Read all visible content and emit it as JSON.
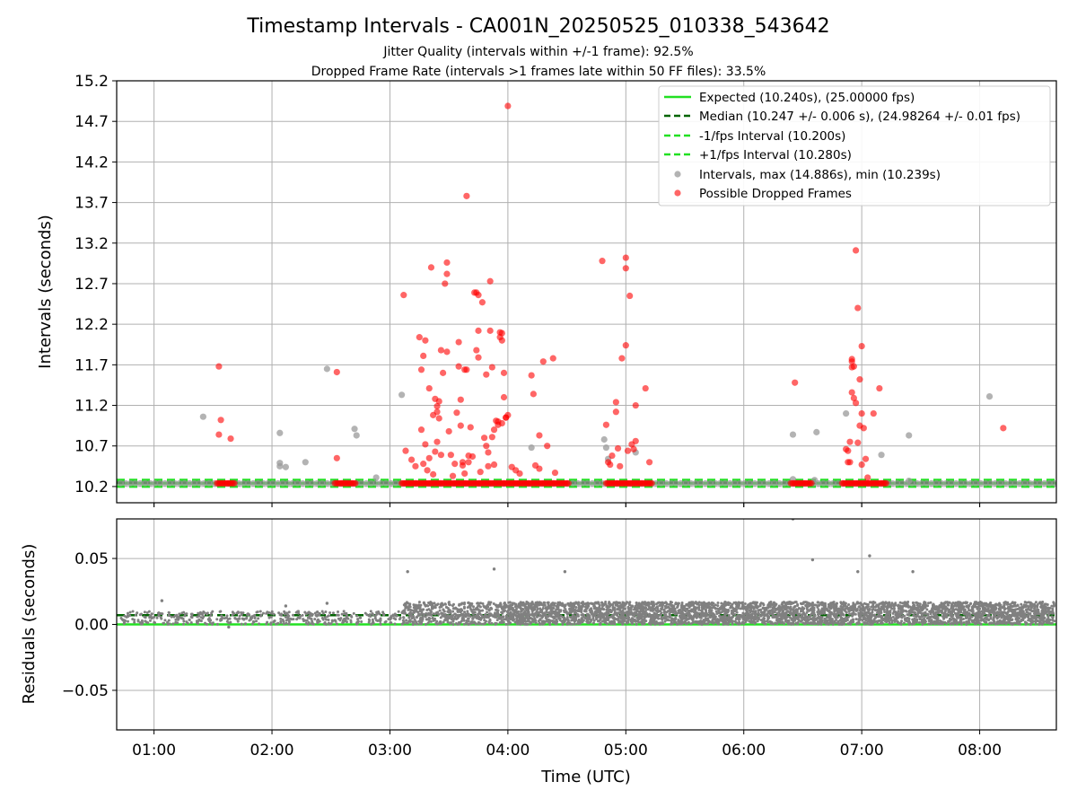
{
  "chart_data": [
    {
      "type": "scatter",
      "title": "Timestamp Intervals - CA001N_20250525_010338_543642",
      "subtitle_lines": [
        "Jitter Quality (intervals within +/-1 frame): 92.5%",
        "Dropped Frame Rate (intervals >1 frames late within 50 FF files): 33.5%"
      ],
      "xlabel": "",
      "ylabel": "Intervals (seconds)",
      "xlim": [
        "00:41",
        "08:39"
      ],
      "ylim": [
        10.0,
        15.2
      ],
      "yticks": [
        10.2,
        10.7,
        11.2,
        11.7,
        12.2,
        12.7,
        13.2,
        13.7,
        14.2,
        14.7,
        15.2
      ],
      "xticks": [
        "01:00",
        "02:00",
        "03:00",
        "04:00",
        "05:00",
        "06:00",
        "07:00",
        "08:00"
      ],
      "grid": true,
      "legend_position": "top-right",
      "lines": [
        {
          "name": "Expected (10.240s), (25.00000 fps)",
          "y": 10.24,
          "color": "#22e022",
          "style": "solid"
        },
        {
          "name": "Median (10.247 +/- 0.006 s), (24.98264 +/- 0.01 fps)",
          "y": 10.247,
          "color": "#006400",
          "style": "dashed"
        },
        {
          "name": "-1/fps Interval (10.200s)",
          "y": 10.2,
          "color": "#22e022",
          "style": "dashed"
        },
        {
          "name": "+1/fps Interval (10.280s)",
          "y": 10.28,
          "color": "#22e022",
          "style": "dashed"
        }
      ],
      "series": [
        {
          "name": "Intervals, max (14.886s), min (10.239s)",
          "color": "#999999",
          "baseline": {
            "y": 10.24,
            "x_start": "00:43",
            "x_end": "08:38",
            "step_minutes": 2.5
          },
          "points": [
            {
              "x": "01:25",
              "y": 11.06
            },
            {
              "x": "02:04",
              "y": 10.86
            },
            {
              "x": "02:04",
              "y": 10.49
            },
            {
              "x": "02:04",
              "y": 10.45
            },
            {
              "x": "02:07",
              "y": 10.44
            },
            {
              "x": "02:17",
              "y": 10.5
            },
            {
              "x": "02:28",
              "y": 11.65
            },
            {
              "x": "02:42",
              "y": 10.91
            },
            {
              "x": "02:43",
              "y": 10.83
            },
            {
              "x": "02:53",
              "y": 10.31
            },
            {
              "x": "03:06",
              "y": 11.33
            },
            {
              "x": "04:12",
              "y": 10.68
            },
            {
              "x": "04:49",
              "y": 10.78
            },
            {
              "x": "04:50",
              "y": 10.68
            },
            {
              "x": "04:51",
              "y": 10.54
            },
            {
              "x": "05:05",
              "y": 10.62
            },
            {
              "x": "06:25",
              "y": 10.84
            },
            {
              "x": "06:25",
              "y": 10.29
            },
            {
              "x": "06:37",
              "y": 10.87
            },
            {
              "x": "06:36",
              "y": 10.28
            },
            {
              "x": "06:52",
              "y": 11.1
            },
            {
              "x": "07:10",
              "y": 10.59
            },
            {
              "x": "07:24",
              "y": 10.83
            },
            {
              "x": "07:24",
              "y": 10.27
            },
            {
              "x": "08:05",
              "y": 11.31
            }
          ]
        },
        {
          "name": "Possible Dropped Frames",
          "color": "#ff0000",
          "baseline_runs": [
            {
              "y": 10.24,
              "x_start": "01:32",
              "x_end": "01:41"
            },
            {
              "x_start": "02:32",
              "x_end": "02:43",
              "y": 10.24
            },
            {
              "x_start": "03:06",
              "x_end": "04:31",
              "y": 10.24
            },
            {
              "x_start": "04:50",
              "x_end": "05:14",
              "y": 10.24
            },
            {
              "x_start": "06:24",
              "x_end": "06:35",
              "y": 10.24
            },
            {
              "x_start": "06:50",
              "x_end": "07:13",
              "y": 10.24
            }
          ],
          "points": [
            {
              "x": "01:33",
              "y": 11.68
            },
            {
              "x": "01:34",
              "y": 11.02
            },
            {
              "x": "01:33",
              "y": 10.84
            },
            {
              "x": "01:39",
              "y": 10.79
            },
            {
              "x": "02:33",
              "y": 11.61
            },
            {
              "x": "02:33",
              "y": 10.55
            },
            {
              "x": "03:07",
              "y": 12.56
            },
            {
              "x": "03:08",
              "y": 10.64
            },
            {
              "x": "03:11",
              "y": 10.53
            },
            {
              "x": "03:13",
              "y": 10.45
            },
            {
              "x": "03:15",
              "y": 12.04
            },
            {
              "x": "03:16",
              "y": 11.64
            },
            {
              "x": "03:16",
              "y": 10.9
            },
            {
              "x": "03:17",
              "y": 11.81
            },
            {
              "x": "03:17",
              "y": 10.48
            },
            {
              "x": "03:18",
              "y": 12.0
            },
            {
              "x": "03:18",
              "y": 10.72
            },
            {
              "x": "03:19",
              "y": 10.4
            },
            {
              "x": "03:20",
              "y": 11.41
            },
            {
              "x": "03:20",
              "y": 10.55
            },
            {
              "x": "03:21",
              "y": 12.9
            },
            {
              "x": "03:22",
              "y": 11.08
            },
            {
              "x": "03:22",
              "y": 10.35
            },
            {
              "x": "03:23",
              "y": 11.28
            },
            {
              "x": "03:23",
              "y": 10.63
            },
            {
              "x": "03:24",
              "y": 11.19
            },
            {
              "x": "03:24",
              "y": 11.12
            },
            {
              "x": "03:24",
              "y": 10.75
            },
            {
              "x": "03:25",
              "y": 11.25
            },
            {
              "x": "03:25",
              "y": 11.04
            },
            {
              "x": "03:26",
              "y": 11.88
            },
            {
              "x": "03:26",
              "y": 10.59
            },
            {
              "x": "03:27",
              "y": 11.6
            },
            {
              "x": "03:28",
              "y": 12.7
            },
            {
              "x": "03:29",
              "y": 12.96
            },
            {
              "x": "03:29",
              "y": 12.82
            },
            {
              "x": "03:29",
              "y": 11.86
            },
            {
              "x": "03:30",
              "y": 10.88
            },
            {
              "x": "03:31",
              "y": 10.59
            },
            {
              "x": "03:32",
              "y": 10.33
            },
            {
              "x": "03:33",
              "y": 10.48
            },
            {
              "x": "03:34",
              "y": 11.11
            },
            {
              "x": "03:35",
              "y": 11.98
            },
            {
              "x": "03:35",
              "y": 11.68
            },
            {
              "x": "03:36",
              "y": 11.27
            },
            {
              "x": "03:36",
              "y": 10.95
            },
            {
              "x": "03:37",
              "y": 10.5
            },
            {
              "x": "03:37",
              "y": 10.46
            },
            {
              "x": "03:38",
              "y": 11.64
            },
            {
              "x": "03:38",
              "y": 10.36
            },
            {
              "x": "03:39",
              "y": 13.78
            },
            {
              "x": "03:39",
              "y": 11.64
            },
            {
              "x": "03:40",
              "y": 10.58
            },
            {
              "x": "03:40",
              "y": 10.5
            },
            {
              "x": "03:41",
              "y": 10.93
            },
            {
              "x": "03:42",
              "y": 10.57
            },
            {
              "x": "03:43",
              "y": 12.59
            },
            {
              "x": "03:44",
              "y": 12.59
            },
            {
              "x": "03:44",
              "y": 11.88
            },
            {
              "x": "03:45",
              "y": 12.56
            },
            {
              "x": "03:45",
              "y": 11.79
            },
            {
              "x": "03:45",
              "y": 12.12
            },
            {
              "x": "03:46",
              "y": 10.38
            },
            {
              "x": "03:47",
              "y": 12.47
            },
            {
              "x": "03:48",
              "y": 10.8
            },
            {
              "x": "03:49",
              "y": 11.58
            },
            {
              "x": "03:49",
              "y": 10.7
            },
            {
              "x": "03:50",
              "y": 10.45
            },
            {
              "x": "03:50",
              "y": 10.62
            },
            {
              "x": "03:51",
              "y": 12.73
            },
            {
              "x": "03:51",
              "y": 12.12
            },
            {
              "x": "03:52",
              "y": 11.67
            },
            {
              "x": "03:52",
              "y": 10.81
            },
            {
              "x": "03:53",
              "y": 10.9
            },
            {
              "x": "03:53",
              "y": 10.47
            },
            {
              "x": "03:54",
              "y": 11.01
            },
            {
              "x": "03:55",
              "y": 11.0
            },
            {
              "x": "03:55",
              "y": 10.96
            },
            {
              "x": "03:56",
              "y": 12.1
            },
            {
              "x": "03:56",
              "y": 12.04
            },
            {
              "x": "03:57",
              "y": 12.09
            },
            {
              "x": "03:57",
              "y": 12.0
            },
            {
              "x": "03:57",
              "y": 10.98
            },
            {
              "x": "03:58",
              "y": 11.6
            },
            {
              "x": "03:58",
              "y": 11.3
            },
            {
              "x": "03:59",
              "y": 11.05
            },
            {
              "x": "03:59",
              "y": 11.05
            },
            {
              "x": "04:00",
              "y": 14.89
            },
            {
              "x": "04:00",
              "y": 11.08
            },
            {
              "x": "04:02",
              "y": 10.44
            },
            {
              "x": "04:04",
              "y": 10.4
            },
            {
              "x": "04:06",
              "y": 10.36
            },
            {
              "x": "04:12",
              "y": 11.57
            },
            {
              "x": "04:13",
              "y": 11.34
            },
            {
              "x": "04:14",
              "y": 10.46
            },
            {
              "x": "04:16",
              "y": 10.83
            },
            {
              "x": "04:16",
              "y": 10.42
            },
            {
              "x": "04:18",
              "y": 11.74
            },
            {
              "x": "04:20",
              "y": 10.7
            },
            {
              "x": "04:23",
              "y": 11.78
            },
            {
              "x": "04:24",
              "y": 10.37
            },
            {
              "x": "04:48",
              "y": 12.98
            },
            {
              "x": "04:50",
              "y": 10.96
            },
            {
              "x": "04:51",
              "y": 10.5
            },
            {
              "x": "04:52",
              "y": 10.47
            },
            {
              "x": "04:53",
              "y": 10.58
            },
            {
              "x": "04:55",
              "y": 11.24
            },
            {
              "x": "04:55",
              "y": 11.12
            },
            {
              "x": "04:56",
              "y": 10.67
            },
            {
              "x": "04:57",
              "y": 10.45
            },
            {
              "x": "04:58",
              "y": 11.78
            },
            {
              "x": "05:00",
              "y": 13.02
            },
            {
              "x": "05:00",
              "y": 12.89
            },
            {
              "x": "05:00",
              "y": 11.94
            },
            {
              "x": "05:01",
              "y": 10.64
            },
            {
              "x": "05:02",
              "y": 12.55
            },
            {
              "x": "05:03",
              "y": 10.72
            },
            {
              "x": "05:04",
              "y": 10.66
            },
            {
              "x": "05:05",
              "y": 11.2
            },
            {
              "x": "05:05",
              "y": 10.76
            },
            {
              "x": "05:10",
              "y": 11.41
            },
            {
              "x": "05:12",
              "y": 10.5
            },
            {
              "x": "06:26",
              "y": 11.48
            },
            {
              "x": "06:52",
              "y": 10.66
            },
            {
              "x": "06:53",
              "y": 10.64
            },
            {
              "x": "06:53",
              "y": 10.5
            },
            {
              "x": "06:54",
              "y": 10.75
            },
            {
              "x": "06:54",
              "y": 10.5
            },
            {
              "x": "06:55",
              "y": 11.67
            },
            {
              "x": "06:55",
              "y": 11.74
            },
            {
              "x": "06:55",
              "y": 11.77
            },
            {
              "x": "06:55",
              "y": 11.36
            },
            {
              "x": "06:56",
              "y": 11.68
            },
            {
              "x": "06:56",
              "y": 11.29
            },
            {
              "x": "06:57",
              "y": 13.11
            },
            {
              "x": "06:57",
              "y": 11.23
            },
            {
              "x": "06:58",
              "y": 12.4
            },
            {
              "x": "06:58",
              "y": 10.74
            },
            {
              "x": "06:59",
              "y": 11.52
            },
            {
              "x": "06:59",
              "y": 10.95
            },
            {
              "x": "07:00",
              "y": 11.93
            },
            {
              "x": "07:00",
              "y": 11.1
            },
            {
              "x": "07:00",
              "y": 10.47
            },
            {
              "x": "07:01",
              "y": 10.92
            },
            {
              "x": "07:02",
              "y": 10.54
            },
            {
              "x": "07:03",
              "y": 10.31
            },
            {
              "x": "07:06",
              "y": 11.1
            },
            {
              "x": "07:09",
              "y": 11.41
            },
            {
              "x": "08:12",
              "y": 10.92
            }
          ]
        }
      ]
    },
    {
      "type": "scatter",
      "title": "",
      "xlabel": "Time (UTC)",
      "ylabel": "Residuals (seconds)",
      "xlim": [
        "00:41",
        "08:39"
      ],
      "ylim": [
        -0.08,
        0.08
      ],
      "yticks": [
        -0.05,
        0.0,
        0.05
      ],
      "ytick_labels": [
        "−0.05",
        "0.00",
        "0.05"
      ],
      "xticks": [
        "01:00",
        "02:00",
        "03:00",
        "04:00",
        "05:00",
        "06:00",
        "07:00",
        "08:00"
      ],
      "grid": true,
      "lines": [
        {
          "y": 0.0,
          "color": "#22e022",
          "style": "solid"
        },
        {
          "y": 0.007,
          "color": "#006400",
          "style": "dashed"
        }
      ],
      "series": [
        {
          "color": "#808080",
          "bands": [
            {
              "x_start": "00:43",
              "x_end": "03:06",
              "y_min": 0.0,
              "y_max": 0.01,
              "density_per_minute": 3
            },
            {
              "x_start": "03:06",
              "x_end": "04:00",
              "y_min": 0.0,
              "y_max": 0.017,
              "density_per_minute": 10
            },
            {
              "x_start": "04:00",
              "x_end": "08:38",
              "y_min": 0.0,
              "y_max": 0.017,
              "density_per_minute": 14
            }
          ],
          "points": [
            {
              "x": "01:04",
              "y": 0.018
            },
            {
              "x": "01:38",
              "y": -0.002
            },
            {
              "x": "02:07",
              "y": 0.014
            },
            {
              "x": "02:28",
              "y": 0.016
            },
            {
              "x": "03:09",
              "y": 0.04
            },
            {
              "x": "03:53",
              "y": 0.042
            },
            {
              "x": "04:29",
              "y": 0.04
            },
            {
              "x": "06:25",
              "y": 0.08
            },
            {
              "x": "06:35",
              "y": 0.049
            },
            {
              "x": "06:58",
              "y": 0.04
            },
            {
              "x": "07:04",
              "y": 0.052
            },
            {
              "x": "07:26",
              "y": 0.04
            }
          ]
        }
      ]
    }
  ]
}
